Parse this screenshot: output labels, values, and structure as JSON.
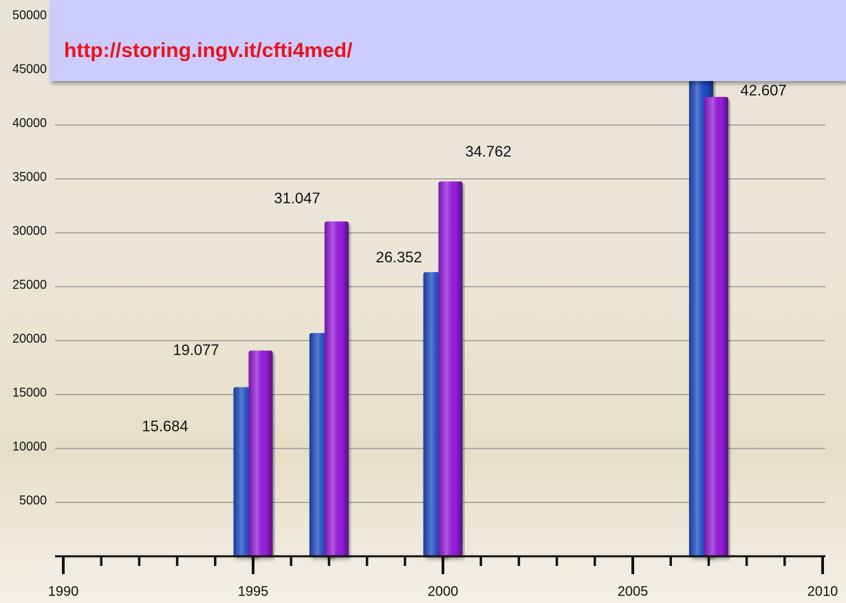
{
  "banner": "http://storing.ingv.it/cfti4med/",
  "chart_data": {
    "type": "bar",
    "x": [
      1995,
      1997,
      2000,
      2007
    ],
    "series": [
      {
        "color": "#1f4fc8",
        "values": [
          15684,
          20700,
          26352,
          48000
        ],
        "value_labels": [
          "15.684",
          null,
          "26.352",
          null
        ]
      },
      {
        "color": "#9a1ee0",
        "values": [
          19077,
          31047,
          34762,
          42607
        ],
        "value_labels": [
          "19.077",
          "31.047",
          "34.762",
          "42.607"
        ]
      }
    ],
    "xlim": [
      1990,
      2010
    ],
    "xticks": [
      1990,
      1995,
      2000,
      2005,
      2010
    ],
    "ylim": [
      0,
      50000
    ],
    "yticks": [
      5000,
      10000,
      15000,
      20000,
      25000,
      30000,
      35000,
      40000,
      45000,
      50000
    ],
    "grid": true
  }
}
